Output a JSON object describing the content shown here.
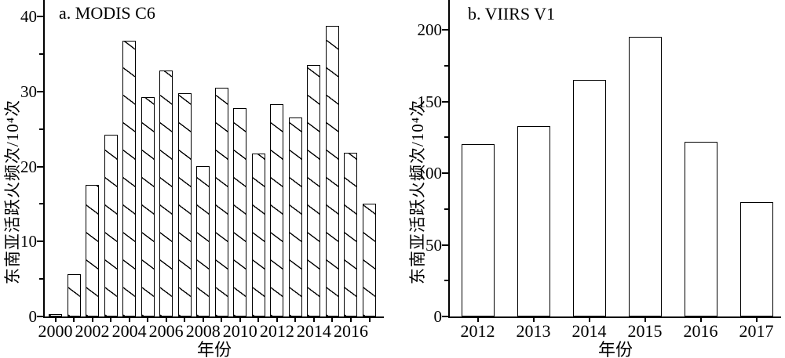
{
  "figure": {
    "background_color": "#ffffff",
    "line_color": "#000000",
    "text_color": "#000000"
  },
  "chart_data": [
    {
      "id": "panel-a",
      "type": "bar",
      "title": "a. MODIS C6",
      "xlabel": "年份",
      "ylabel": "东南亚活跃火频次/10⁴次",
      "categories": [
        "2000",
        "2001",
        "2002",
        "2003",
        "2004",
        "2005",
        "2006",
        "2007",
        "2008",
        "2009",
        "2010",
        "2011",
        "2012",
        "2013",
        "2014",
        "2015",
        "2016",
        "2017"
      ],
      "values": [
        0.3,
        5.6,
        17.5,
        24.2,
        36.8,
        29.2,
        32.8,
        29.8,
        20.1,
        30.5,
        27.8,
        21.7,
        28.3,
        26.5,
        33.5,
        38.7,
        21.8,
        15.0
      ],
      "xtick_labels": [
        "2000",
        "",
        "2002",
        "",
        "2004",
        "",
        "2006",
        "",
        "2008",
        "",
        "2010",
        "",
        "2012",
        "",
        "2014",
        "",
        "2016",
        ""
      ],
      "yticks": [
        0,
        10,
        20,
        30,
        40
      ],
      "ytick_labels": [
        "0",
        "10",
        "20",
        "30",
        "40"
      ],
      "yminor": [
        5,
        15,
        25,
        35
      ],
      "ylim": [
        0,
        40
      ],
      "grid": false,
      "legend": "none",
      "bar_fill": "white",
      "bar_hatch": "diagonal-backslash"
    },
    {
      "id": "panel-b",
      "type": "bar",
      "title": "b. VIIRS V1",
      "xlabel": "年份",
      "ylabel": "东南亚活跃火频次/10⁴次",
      "categories": [
        "2012",
        "2013",
        "2014",
        "2015",
        "2016",
        "2017"
      ],
      "values": [
        120,
        133,
        165,
        195,
        122,
        80
      ],
      "xtick_labels": [
        "2012",
        "2013",
        "2014",
        "2015",
        "2016",
        "2017"
      ],
      "yticks": [
        0,
        50,
        100,
        150,
        200
      ],
      "ytick_labels": [
        "0",
        "50",
        "100",
        "150",
        "200"
      ],
      "yminor": [
        25,
        75,
        125,
        175
      ],
      "ylim": [
        0,
        200
      ],
      "grid": false,
      "legend": "none",
      "bar_fill": "white",
      "bar_hatch": "none"
    }
  ]
}
